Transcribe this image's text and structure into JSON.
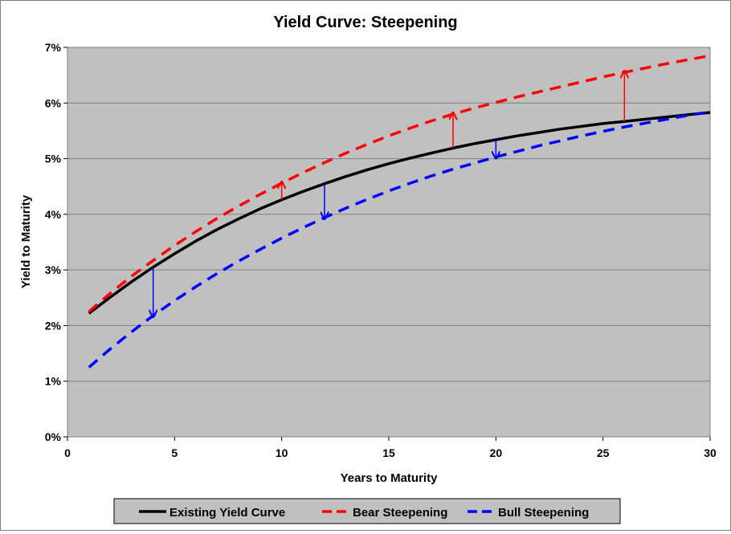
{
  "chart_data": {
    "type": "line",
    "title": "Yield Curve: Steepening",
    "xlabel": "Years to Maturity",
    "ylabel": "Yield to Maturity",
    "xlim": [
      0,
      30
    ],
    "ylim": [
      0,
      7
    ],
    "x_ticks": [
      "0",
      "5",
      "10",
      "15",
      "20",
      "25",
      "30"
    ],
    "y_ticks": [
      "0%",
      "1%",
      "2%",
      "3%",
      "4%",
      "5%",
      "6%",
      "7%"
    ],
    "grid": true,
    "legend_position": "bottom",
    "series": [
      {
        "name": "Existing Yield Curve",
        "color": "#000000",
        "style": "solid",
        "x": [
          1,
          2,
          3,
          4,
          5,
          6,
          7,
          8,
          9,
          10,
          11,
          12,
          13,
          14,
          15,
          16,
          17,
          18,
          19,
          20,
          21,
          22,
          23,
          24,
          25,
          26,
          27,
          28,
          29,
          30
        ],
        "y": [
          2.22,
          2.51,
          2.79,
          3.05,
          3.29,
          3.52,
          3.73,
          3.92,
          4.1,
          4.26,
          4.41,
          4.55,
          4.68,
          4.8,
          4.91,
          5.01,
          5.1,
          5.19,
          5.27,
          5.34,
          5.41,
          5.47,
          5.53,
          5.58,
          5.63,
          5.67,
          5.71,
          5.75,
          5.79,
          5.83
        ]
      },
      {
        "name": "Bear Steepening",
        "color": "#ff0000",
        "style": "dashed",
        "x": [
          1,
          2,
          3,
          4,
          5,
          6,
          7,
          8,
          9,
          10,
          11,
          12,
          13,
          14,
          15,
          16,
          17,
          18,
          19,
          20,
          21,
          22,
          23,
          24,
          25,
          26,
          27,
          28,
          29,
          30
        ],
        "y": [
          2.25,
          2.58,
          2.89,
          3.17,
          3.44,
          3.69,
          3.93,
          4.15,
          4.36,
          4.56,
          4.75,
          4.93,
          5.1,
          5.26,
          5.41,
          5.55,
          5.68,
          5.8,
          5.91,
          6.01,
          6.11,
          6.2,
          6.29,
          6.38,
          6.47,
          6.55,
          6.63,
          6.71,
          6.78,
          6.85
        ]
      },
      {
        "name": "Bull Steepening",
        "color": "#0000ff",
        "style": "dashed",
        "x": [
          1,
          2,
          3,
          4,
          5,
          6,
          7,
          8,
          9,
          10,
          11,
          12,
          13,
          14,
          15,
          16,
          17,
          18,
          19,
          20,
          21,
          22,
          23,
          24,
          25,
          26,
          27,
          28,
          29,
          30
        ],
        "y": [
          1.25,
          1.58,
          1.89,
          2.18,
          2.45,
          2.7,
          2.94,
          3.16,
          3.37,
          3.57,
          3.76,
          3.94,
          4.11,
          4.27,
          4.42,
          4.56,
          4.69,
          4.81,
          4.92,
          5.03,
          5.13,
          5.23,
          5.32,
          5.41,
          5.49,
          5.57,
          5.64,
          5.71,
          5.78,
          5.84
        ]
      }
    ],
    "arrows": [
      {
        "x": 4,
        "from": 3.05,
        "to": 2.18,
        "color": "#0000ff"
      },
      {
        "x": 10,
        "from": 4.26,
        "to": 4.56,
        "color": "#ff0000"
      },
      {
        "x": 12,
        "from": 4.55,
        "to": 3.94,
        "color": "#0000ff"
      },
      {
        "x": 18,
        "from": 5.19,
        "to": 5.8,
        "color": "#ff0000"
      },
      {
        "x": 20,
        "from": 5.34,
        "to": 5.03,
        "color": "#0000ff"
      },
      {
        "x": 26,
        "from": 5.67,
        "to": 6.55,
        "color": "#ff0000"
      }
    ]
  }
}
